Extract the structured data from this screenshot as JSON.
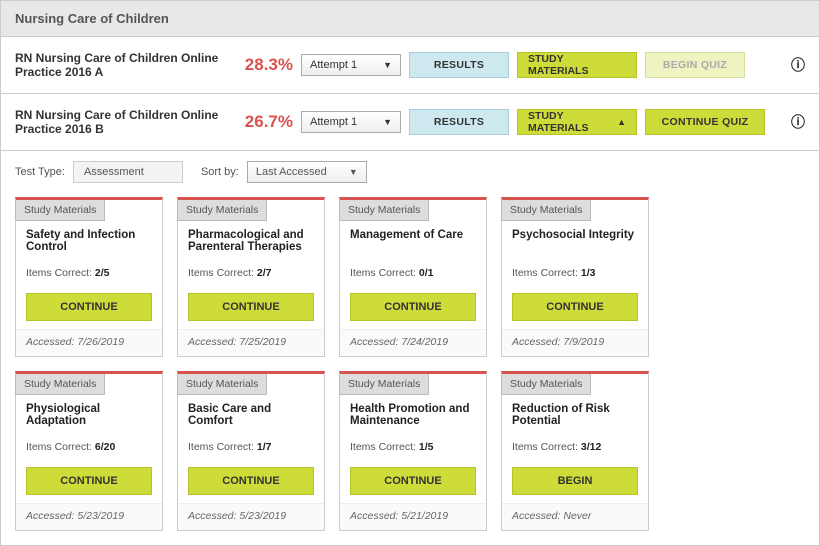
{
  "header": {
    "title": "Nursing Care of Children"
  },
  "practices": [
    {
      "title": "RN Nursing Care of Children Online Practice 2016 A",
      "score": "28.3%",
      "attempt_label": "Attempt 1",
      "results_label": "RESULTS",
      "study_label": "STUDY MATERIALS",
      "action_label": "BEGIN QUIZ",
      "action_style": "begin",
      "study_expanded": false
    },
    {
      "title": "RN Nursing Care of Children Online Practice 2016 B",
      "score": "26.7%",
      "attempt_label": "Attempt 1",
      "results_label": "RESULTS",
      "study_label": "STUDY MATERIALS",
      "action_label": "CONTINUE QUIZ",
      "action_style": "continue",
      "study_expanded": true
    }
  ],
  "filters": {
    "test_type_label": "Test Type:",
    "test_type_value": "Assessment",
    "sort_label": "Sort by:",
    "sort_value": "Last Accessed"
  },
  "cards": [
    {
      "tag": "Study Materials",
      "title": "Safety and Infection Control",
      "items_label": "Items Correct:",
      "items_value": "2/5",
      "btn": "CONTINUE",
      "accessed_label": "Accessed:",
      "accessed_value": "7/26/2019"
    },
    {
      "tag": "Study Materials",
      "title": "Pharmacological and Parenteral Therapies",
      "items_label": "Items Correct:",
      "items_value": "2/7",
      "btn": "CONTINUE",
      "accessed_label": "Accessed:",
      "accessed_value": "7/25/2019"
    },
    {
      "tag": "Study Materials",
      "title": "Management of Care",
      "items_label": "Items Correct:",
      "items_value": "0/1",
      "btn": "CONTINUE",
      "accessed_label": "Accessed:",
      "accessed_value": "7/24/2019"
    },
    {
      "tag": "Study Materials",
      "title": "Psychosocial Integrity",
      "items_label": "Items Correct:",
      "items_value": "1/3",
      "btn": "CONTINUE",
      "accessed_label": "Accessed:",
      "accessed_value": "7/9/2019"
    },
    {
      "tag": "Study Materials",
      "title": "Physiological Adaptation",
      "items_label": "Items Correct:",
      "items_value": "6/20",
      "btn": "CONTINUE",
      "accessed_label": "Accessed:",
      "accessed_value": "5/23/2019"
    },
    {
      "tag": "Study Materials",
      "title": "Basic Care and Comfort",
      "items_label": "Items Correct:",
      "items_value": "1/7",
      "btn": "CONTINUE",
      "accessed_label": "Accessed:",
      "accessed_value": "5/23/2019"
    },
    {
      "tag": "Study Materials",
      "title": "Health Promotion and Maintenance",
      "items_label": "Items Correct:",
      "items_value": "1/5",
      "btn": "CONTINUE",
      "accessed_label": "Accessed:",
      "accessed_value": "5/21/2019"
    },
    {
      "tag": "Study Materials",
      "title": "Reduction of Risk Potential",
      "items_label": "Items Correct:",
      "items_value": "3/12",
      "btn": "BEGIN",
      "accessed_label": "Accessed:",
      "accessed_value": "Never"
    }
  ],
  "colors": {
    "accent_red": "#d9534f",
    "lime": "#cddc39",
    "lime_border": "#b5c22c",
    "results_bg": "#cde8ef",
    "begin_bg": "#eef3c0"
  }
}
